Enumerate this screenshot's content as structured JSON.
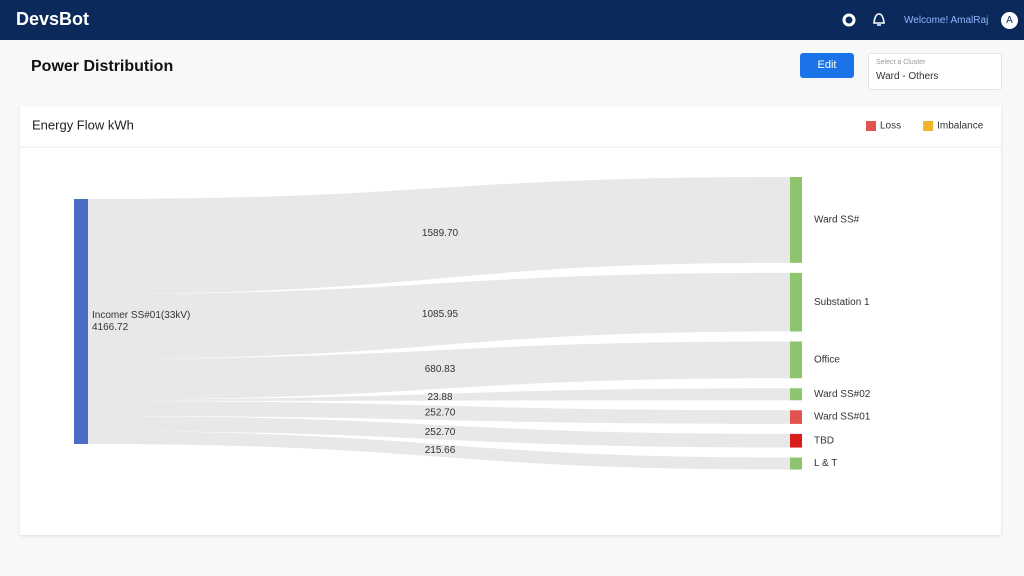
{
  "header": {
    "brand": "DevsBot",
    "welcome": "Welcome! AmalRaj",
    "avatar": "A"
  },
  "page": {
    "title": "Power Distribution",
    "edit": "Edit",
    "cluster_hint": "Select a Cluster",
    "cluster": "Ward - Others"
  },
  "chart_data": {
    "type": "sankey",
    "title": "Energy Flow kWh",
    "legend": [
      {
        "name": "Loss",
        "color": "#e0534f"
      },
      {
        "name": "Imbalance",
        "color": "#f0b429"
      }
    ],
    "source": {
      "label": "Incomer SS#01(33kV)",
      "value": 4166.72,
      "color": "#4a6cc4"
    },
    "categories": [
      "Ward SS#",
      "Substation 1",
      "Office",
      "Ward SS#02",
      "Ward SS#01",
      "TBD",
      "L & T"
    ],
    "values": [
      1589.7,
      1085.95,
      680.83,
      23.88,
      252.7,
      252.7,
      215.66
    ],
    "value_labels": [
      "1589.70",
      "1085.95",
      "680.83",
      "23.88",
      "252.70",
      "252.70",
      "215.66"
    ],
    "colors": [
      "#8dc46e",
      "#8dc46e",
      "#8dc46e",
      "#8dc46e",
      "#e0534f",
      "#d91c1c",
      "#8dc46e"
    ]
  }
}
